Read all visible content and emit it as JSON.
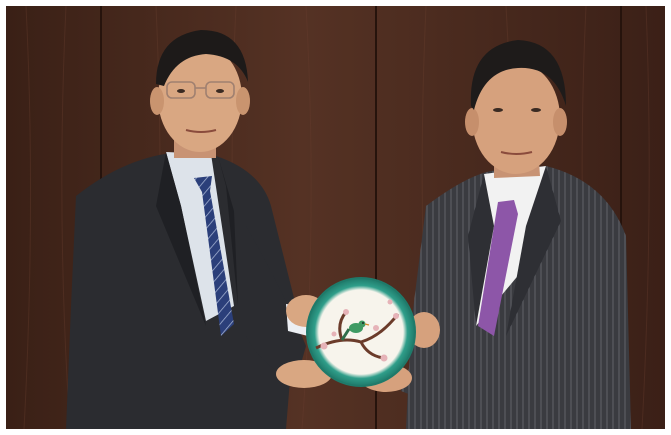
{
  "photo": {
    "subject": "two-men-holding-decorative-plate",
    "colors": {
      "wall": "#4a2a1c",
      "wall_dark": "#301810",
      "suit_left": "#2b2c30",
      "suit_right": "#3a3b40",
      "skin": "#d9a782",
      "shirt_left": "#dde3ea",
      "shirt_right": "#f2f2f2",
      "tie_left": "#2b3f7a",
      "tie_right": "#8d56a8",
      "plate_rim": "#2f9e8a",
      "plate_face": "#f7f4ec",
      "blossom": "#e6b3b8",
      "bird": "#3f9a63"
    }
  }
}
